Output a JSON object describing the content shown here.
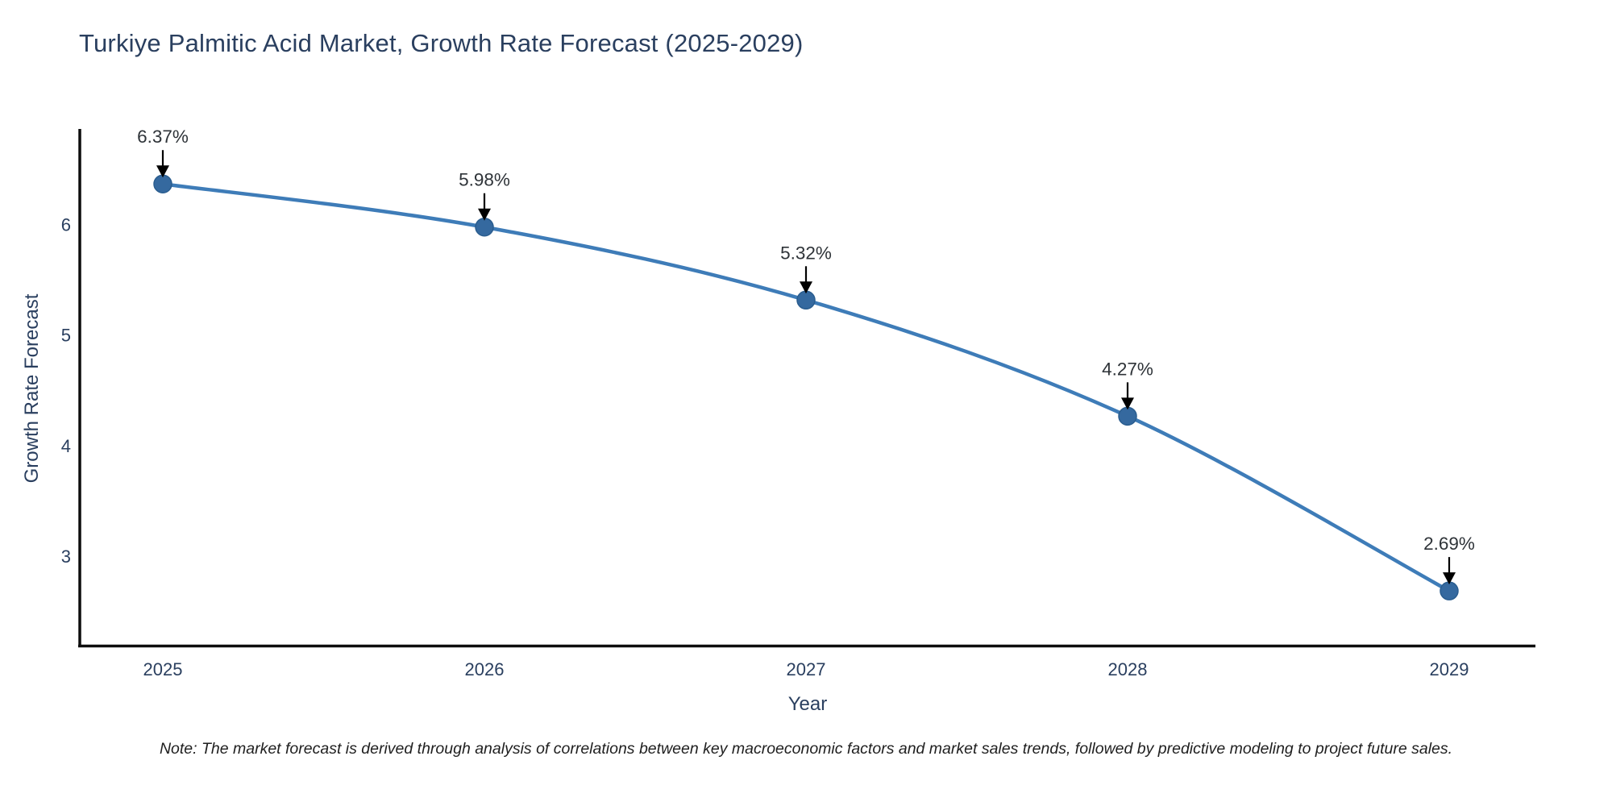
{
  "page": {
    "note": "Note: The market forecast is derived through analysis of correlations between key macroeconomic factors and market sales trends, followed by predictive modeling to project future sales."
  },
  "chart_data": {
    "type": "line",
    "title": "Turkiye Palmitic Acid Market, Growth Rate Forecast (2025-2029)",
    "xlabel": "Year",
    "ylabel": "Growth Rate Forecast",
    "categories": [
      "2025",
      "2026",
      "2027",
      "2028",
      "2029"
    ],
    "series": [
      {
        "name": "Growth Rate Forecast",
        "values": [
          6.37,
          5.98,
          5.32,
          4.27,
          2.69
        ]
      }
    ],
    "point_labels": [
      "6.37%",
      "5.98%",
      "5.32%",
      "4.27%",
      "2.69%"
    ],
    "y_ticks": [
      3,
      4,
      5,
      6
    ],
    "ylim": [
      2.18,
      6.86
    ],
    "grid": false,
    "legend_position": "none",
    "marker": "circle",
    "line_shape": "smooth",
    "annotation_arrows": true,
    "colors": {
      "line": "#3e7cb8",
      "marker_fill": "#35699f",
      "marker_stroke": "#2a5d8f",
      "axis_spine": "#0d0d0d",
      "arrow": "#000000",
      "text": "#2a3f5f",
      "annotation_text": "#2e3338",
      "background": "#ffffff"
    }
  }
}
